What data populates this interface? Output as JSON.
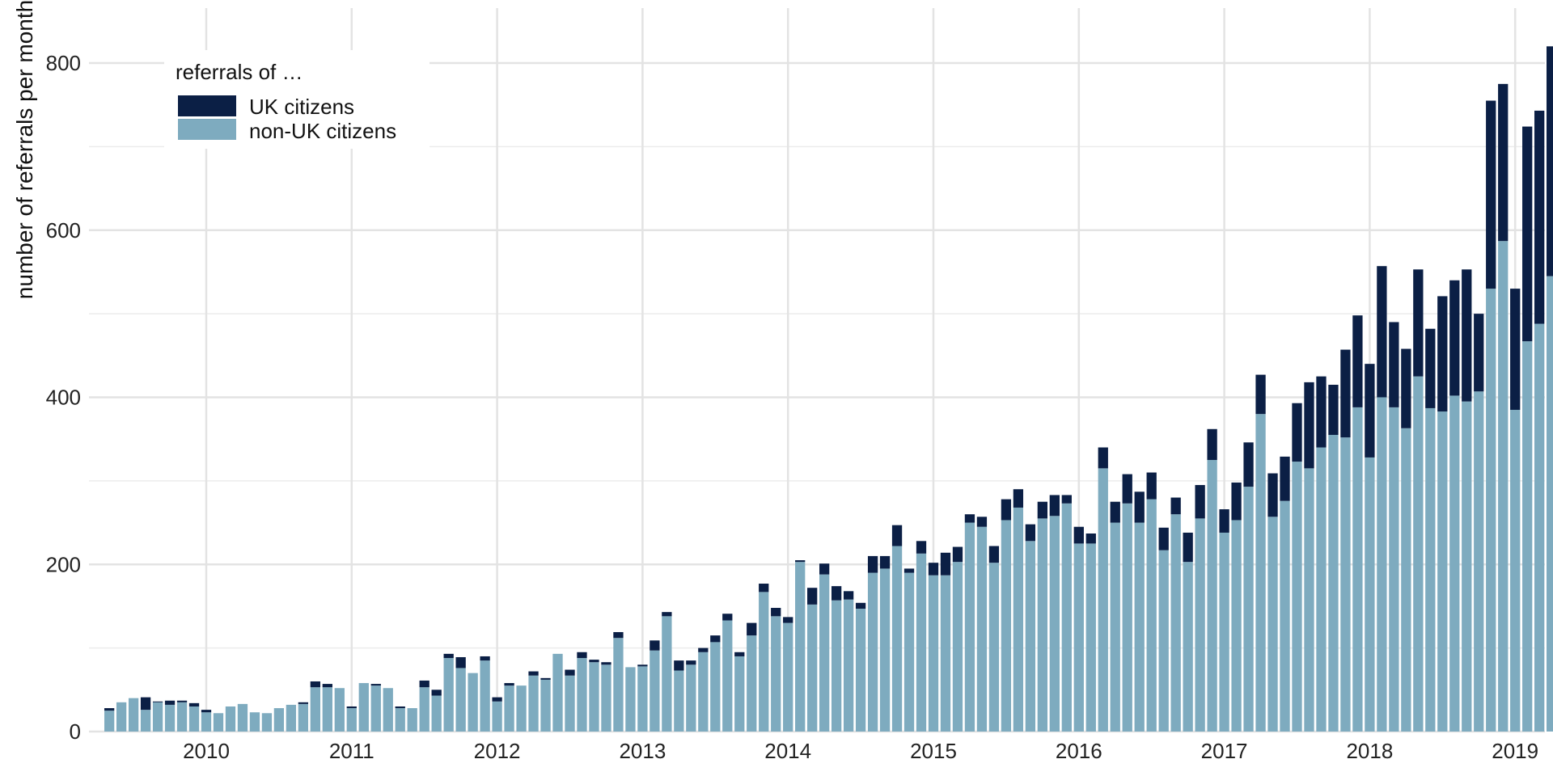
{
  "chart_data": {
    "type": "bar",
    "stacked": true,
    "title": "",
    "xlabel": "",
    "ylabel": "number of referrals per month",
    "ylim": [
      0,
      830
    ],
    "y_ticks": [
      0,
      200,
      400,
      600,
      800
    ],
    "x_ticks": [
      "2010",
      "2011",
      "2012",
      "2013",
      "2014",
      "2015",
      "2016",
      "2017",
      "2018",
      "2019"
    ],
    "x_start": "2009-05",
    "x_end": "2019-03",
    "grid": true,
    "legend": {
      "title": "referrals of …",
      "position": "top-left",
      "entries": [
        {
          "label": "UK citizens",
          "color": "#0b1f45"
        },
        {
          "label": "non-UK citizens",
          "color": "#7eabbf"
        }
      ]
    },
    "series": [
      {
        "name": "non-UK citizens",
        "color": "#7eabbf",
        "values": [
          25,
          35,
          40,
          26,
          35,
          32,
          35,
          30,
          23,
          22,
          30,
          33,
          23,
          22,
          28,
          32,
          33,
          53,
          53,
          52,
          28,
          58,
          55,
          52,
          28,
          28,
          53,
          43,
          88,
          76,
          70,
          85,
          36,
          55,
          55,
          67,
          62,
          93,
          67,
          88,
          83,
          80,
          112,
          77,
          78,
          97,
          138,
          73,
          80,
          95,
          107,
          133,
          90,
          115,
          167,
          138,
          130,
          203,
          152,
          188,
          157,
          158,
          147,
          190,
          195,
          222,
          190,
          213,
          187,
          187,
          203,
          250,
          245,
          202,
          253,
          268,
          228,
          255,
          258,
          273,
          225,
          225,
          315,
          250,
          273,
          250,
          278,
          217,
          260,
          203,
          255,
          325,
          238,
          253,
          293,
          380,
          257,
          276,
          323,
          315,
          340,
          355,
          352,
          388,
          328,
          400,
          388,
          363,
          425,
          387,
          383,
          402,
          395,
          407,
          530,
          587,
          385,
          467,
          488,
          545
        ]
      },
      {
        "name": "UK citizens",
        "color": "#0b1f45",
        "values": [
          3,
          0,
          0,
          15,
          1,
          5,
          2,
          4,
          3,
          0,
          0,
          0,
          0,
          0,
          0,
          0,
          2,
          7,
          4,
          0,
          2,
          0,
          2,
          0,
          2,
          0,
          8,
          7,
          5,
          13,
          0,
          5,
          5,
          3,
          0,
          5,
          2,
          0,
          7,
          7,
          3,
          3,
          7,
          0,
          2,
          12,
          5,
          12,
          5,
          5,
          8,
          8,
          5,
          15,
          10,
          10,
          7,
          2,
          20,
          13,
          17,
          10,
          7,
          20,
          15,
          25,
          5,
          15,
          15,
          27,
          18,
          10,
          12,
          20,
          25,
          22,
          20,
          20,
          25,
          10,
          20,
          12,
          25,
          25,
          35,
          37,
          32,
          27,
          20,
          35,
          40,
          37,
          28,
          45,
          53,
          47,
          52,
          53,
          70,
          103,
          85,
          60,
          105,
          110,
          112,
          157,
          102,
          95,
          128,
          95,
          138,
          138,
          158,
          93,
          225,
          188,
          145,
          257,
          255,
          275
        ]
      }
    ]
  }
}
